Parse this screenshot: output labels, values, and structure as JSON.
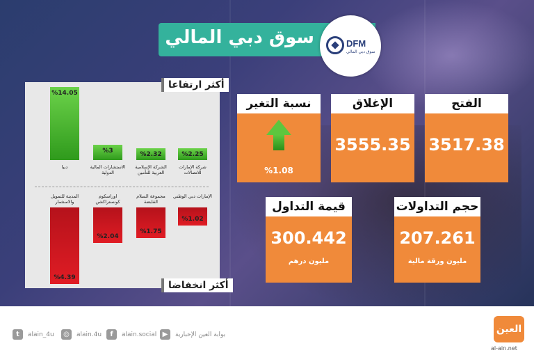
{
  "header": {
    "title": "سوق دبي المالي",
    "logo_text": "DFM",
    "logo_sub": "سوق دبي المالي"
  },
  "gainers": {
    "label": "أكثر ارتفاعا",
    "items": [
      {
        "name": "دبيا",
        "value_label": "%14.05",
        "value": 14.05
      },
      {
        "name": "الاستشارات المالية الدولية",
        "value_label": "%3",
        "value": 3
      },
      {
        "name": "الشركة الإسلامية العربية للتأمين",
        "value_label": "%2.32",
        "value": 2.32
      },
      {
        "name": "شركة الإمارات للاتصالات",
        "value_label": "%2.25",
        "value": 2.25
      }
    ]
  },
  "losers": {
    "label": "أكثر انخفاضا",
    "items": [
      {
        "name": "المدينة للتمويل والاستثمار",
        "value_label": "%4.39",
        "value": 4.39
      },
      {
        "name": "اوراسكوم كونستراكشن",
        "value_label": "%2.04",
        "value": 2.04
      },
      {
        "name": "مجموعة السلام القابضة",
        "value_label": "%1.75",
        "value": 1.75
      },
      {
        "name": "الإمارات دبي الوطني",
        "value_label": "%1.02",
        "value": 1.02
      }
    ]
  },
  "metrics": {
    "change": {
      "label": "نسبة التغير",
      "value": "%1.08",
      "direction": "up"
    },
    "close": {
      "label": "الإغلاق",
      "value": "3555.35"
    },
    "open": {
      "label": "الفتح",
      "value": "3517.38"
    },
    "turnover": {
      "label": "قيمة التداول",
      "value": "300.442",
      "unit": "مليون درهم"
    },
    "volume": {
      "label": "حجم التداولات",
      "value": "207.261",
      "unit": "مليون ورقة مالية"
    }
  },
  "footer": {
    "twitter": "alain_4u",
    "instagram": "alain.4u",
    "facebook": "alain.social",
    "youtube": "بوابة العين الإخبارية",
    "brand": "العين",
    "site": "al-ain.net"
  },
  "colors": {
    "accent": "#f08a3a",
    "header": "#34b29c",
    "up": "#3fae2a",
    "down": "#d0161f"
  }
}
